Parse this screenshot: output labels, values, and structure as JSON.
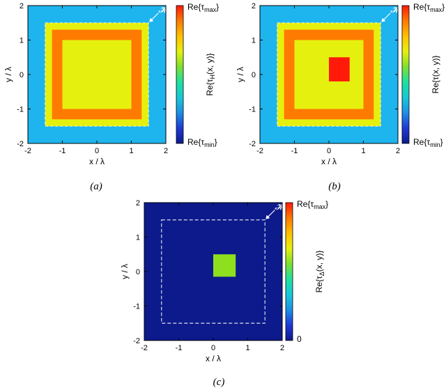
{
  "palette": [
    "#0d1a8c",
    "#1f39d6",
    "#1e8fe6",
    "#18c8d8",
    "#1fe0a0",
    "#7ee030",
    "#e6f00e",
    "#ffc000",
    "#ff7a00",
    "#ff1a0a"
  ],
  "panels": [
    {
      "id": "a",
      "caption": "(a)",
      "xlabel": "x / λ",
      "ylabel": "y / λ",
      "xticks": [
        "-2",
        "-1",
        "0",
        "1",
        "2"
      ],
      "yticks": [
        "-2",
        "-1",
        "0",
        "1",
        "2"
      ],
      "xlim": [
        -2,
        2
      ],
      "ylim": [
        -2,
        2
      ],
      "colorbar_label": "Re{τ_H(x, y)}",
      "colorbar_max": "Re{τmax}",
      "colorbar_min": "Re{τmin}",
      "background_color": "#1eb4ee",
      "regions": [
        {
          "name": "outer-square",
          "x": [
            -1.5,
            1.5
          ],
          "y": [
            -1.5,
            1.5
          ],
          "color": "#e6f00e"
        },
        {
          "name": "ring-square",
          "x": [
            -1.3,
            1.3
          ],
          "y": [
            -1.3,
            1.3
          ],
          "color": "#ff7a00"
        },
        {
          "name": "inner-square",
          "x": [
            -1.0,
            1.0
          ],
          "y": [
            -1.0,
            1.0
          ],
          "color": "#e6f00e"
        }
      ],
      "hull_label": "𝓗"
    },
    {
      "id": "b",
      "caption": "(b)",
      "xlabel": "x / λ",
      "ylabel": "y / λ",
      "xticks": [
        "-2",
        "-1",
        "0",
        "1",
        "2"
      ],
      "yticks": [
        "-2",
        "-1",
        "0",
        "1",
        "2"
      ],
      "xlim": [
        -2,
        2
      ],
      "ylim": [
        -2,
        2
      ],
      "colorbar_label": "Re{τ(x, y)}",
      "colorbar_max": "Re{τmax}",
      "colorbar_min": "Re{τmin}",
      "background_color": "#1eb4ee",
      "regions": [
        {
          "name": "outer-square",
          "x": [
            -1.5,
            1.5
          ],
          "y": [
            -1.5,
            1.5
          ],
          "color": "#e6f00e"
        },
        {
          "name": "ring-square",
          "x": [
            -1.3,
            1.3
          ],
          "y": [
            -1.3,
            1.3
          ],
          "color": "#ff7a00"
        },
        {
          "name": "inner-square",
          "x": [
            -1.0,
            1.0
          ],
          "y": [
            -1.0,
            1.0
          ],
          "color": "#e6f00e"
        },
        {
          "name": "inclusion-square",
          "x": [
            0.0,
            0.6
          ],
          "y": [
            -0.2,
            0.5
          ],
          "color": "#ff1a0a"
        }
      ],
      "hull_label": "𝓗"
    },
    {
      "id": "c",
      "caption": "(c)",
      "xlabel": "x / λ",
      "ylabel": "y / λ",
      "xticks": [
        "-2",
        "-1",
        "0",
        "1",
        "2"
      ],
      "yticks": [
        "-2",
        "-1",
        "0",
        "1",
        "2"
      ],
      "xlim": [
        -2,
        2
      ],
      "ylim": [
        -2,
        2
      ],
      "colorbar_label": "Re{τ_Δ(x, y)}",
      "colorbar_max": "Re{τmax}",
      "colorbar_min": "0",
      "background_color": "#0d1a8c",
      "regions": [
        {
          "name": "difference-square",
          "x": [
            0.0,
            0.65
          ],
          "y": [
            -0.15,
            0.5
          ],
          "color": "#8ee01e"
        }
      ],
      "hull_label": "𝓗",
      "hull_dashed": {
        "x": [
          -1.5,
          1.5
        ],
        "y": [
          -1.5,
          1.5
        ],
        "color": "#b8c0d8"
      }
    }
  ]
}
